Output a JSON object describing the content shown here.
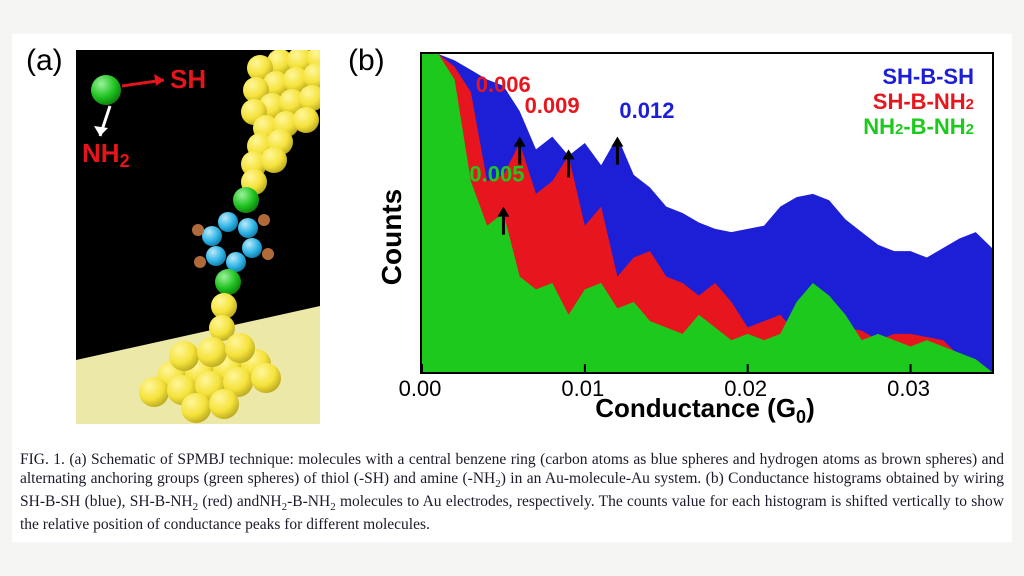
{
  "panels": {
    "a_label": "(a)",
    "b_label": "(b)"
  },
  "schematic": {
    "sh_text": "SH",
    "nh2_text": "NH",
    "nh2_sub": "2",
    "arrow_color": "#e4151c",
    "sh_color": "#e4151c",
    "nh2_color": "#e4151c",
    "gold_color": "#f5e23a",
    "gold_shadow": "#c8b82c",
    "anchor_color": "#1fc21f",
    "carbon_color": "#2eb5e8",
    "hydrogen_color": "#b06a3a",
    "background_black": "#000000",
    "background_gold": "#ece8a7"
  },
  "chart": {
    "type": "histogram",
    "xlabel": "Conductance (G",
    "xlabel_sub": "0",
    "xlabel_close": ")",
    "ylabel": "Counts",
    "xlim": [
      0.0,
      0.035
    ],
    "xticks": [
      0.0,
      0.01,
      0.02,
      0.03
    ],
    "xtick_labels": [
      "0.00",
      "0.01",
      "0.02",
      "0.03"
    ],
    "background_color": "#ffffff",
    "border_color": "#000000",
    "series": {
      "blue": {
        "label_html": "SH-B-SH",
        "color": "#1d1fd6",
        "peak_x": 0.012,
        "peak_label": "0.012",
        "x": [
          0.0,
          0.001,
          0.002,
          0.003,
          0.004,
          0.005,
          0.006,
          0.007,
          0.008,
          0.009,
          0.01,
          0.011,
          0.012,
          0.013,
          0.014,
          0.015,
          0.016,
          0.017,
          0.018,
          0.019,
          0.02,
          0.021,
          0.022,
          0.023,
          0.024,
          0.025,
          0.026,
          0.027,
          0.028,
          0.029,
          0.03,
          0.031,
          0.032,
          0.033,
          0.034,
          0.035
        ],
        "y": [
          1.0,
          1.0,
          0.98,
          0.95,
          0.92,
          0.9,
          0.82,
          0.7,
          0.74,
          0.68,
          0.72,
          0.65,
          0.74,
          0.62,
          0.58,
          0.52,
          0.5,
          0.47,
          0.45,
          0.44,
          0.45,
          0.46,
          0.52,
          0.55,
          0.56,
          0.54,
          0.48,
          0.44,
          0.4,
          0.38,
          0.38,
          0.36,
          0.39,
          0.42,
          0.44,
          0.39
        ]
      },
      "red": {
        "label_html": "SH-B-NH",
        "label_sub": "2",
        "color": "#e7161e",
        "peak_x": 0.006,
        "peak_x2": 0.009,
        "peak_label": "0.006",
        "peak_label2": "0.009",
        "x": [
          0.0,
          0.001,
          0.002,
          0.003,
          0.004,
          0.005,
          0.006,
          0.007,
          0.008,
          0.009,
          0.01,
          0.011,
          0.012,
          0.013,
          0.014,
          0.015,
          0.016,
          0.017,
          0.018,
          0.019,
          0.02,
          0.021,
          0.022,
          0.023,
          0.024,
          0.025,
          0.026,
          0.027,
          0.028,
          0.029,
          0.03,
          0.031,
          0.032,
          0.033,
          0.034,
          0.035
        ],
        "y": [
          1.0,
          1.0,
          0.96,
          0.88,
          0.6,
          0.62,
          0.72,
          0.56,
          0.6,
          0.68,
          0.46,
          0.52,
          0.3,
          0.36,
          0.38,
          0.3,
          0.28,
          0.24,
          0.28,
          0.22,
          0.14,
          0.16,
          0.18,
          0.12,
          0.18,
          0.22,
          0.14,
          0.13,
          0.1,
          0.12,
          0.12,
          0.11,
          0.1,
          0.05,
          0.04,
          0.0
        ]
      },
      "green": {
        "label_html": "NH",
        "label_sub": "2",
        "label_mid": "-B-NH",
        "label_sub2": "2",
        "color": "#1ec91e",
        "peak_x": 0.005,
        "peak_label": "0.005",
        "x": [
          0.0,
          0.001,
          0.002,
          0.003,
          0.004,
          0.005,
          0.006,
          0.007,
          0.008,
          0.009,
          0.01,
          0.011,
          0.012,
          0.013,
          0.014,
          0.015,
          0.016,
          0.017,
          0.018,
          0.019,
          0.02,
          0.021,
          0.022,
          0.023,
          0.024,
          0.025,
          0.026,
          0.027,
          0.028,
          0.029,
          0.03,
          0.031,
          0.032,
          0.033,
          0.034,
          0.035
        ],
        "y": [
          1.0,
          1.0,
          0.92,
          0.6,
          0.46,
          0.5,
          0.3,
          0.26,
          0.28,
          0.18,
          0.26,
          0.28,
          0.2,
          0.22,
          0.16,
          0.14,
          0.12,
          0.18,
          0.14,
          0.1,
          0.12,
          0.1,
          0.12,
          0.22,
          0.28,
          0.24,
          0.18,
          0.1,
          0.12,
          0.1,
          0.08,
          0.1,
          0.08,
          0.06,
          0.04,
          0.0
        ]
      }
    }
  },
  "caption": {
    "prefix": "FIG. 1. (a) Schematic of SPMBJ technique: molecules with a central benzene ring (carbon atoms as blue spheres and hydrogen atoms as brown spheres) and alternating anchoring groups (green spheres) of thiol (-SH) and amine (-NH",
    "sub1": "2",
    "mid1": ") in an Au-molecule-Au system. (b) Conductance histograms obtained by wiring SH-B-SH (blue), SH-B-NH",
    "sub2": "2",
    "mid2": " (red) andNH",
    "sub3": "2",
    "mid3": "-B-NH",
    "sub4": "2",
    "end": " molecules to Au electrodes, respectively. The counts value for each histogram is shifted vertically to show the relative position of conductance peaks for different molecules."
  }
}
